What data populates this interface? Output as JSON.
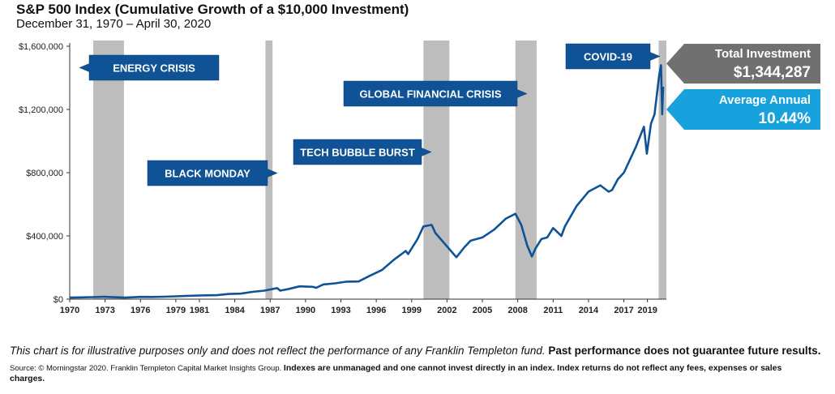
{
  "header": {
    "title": "S&P 500 Index (Cumulative Growth of a $10,000 Investment)",
    "subtitle": "December 31, 1970 – April 30, 2020"
  },
  "callouts": {
    "total_label": "Total Investment",
    "total_value": "$1,344,287",
    "average_label": "Average Annual",
    "average_value": "10.44%"
  },
  "footer": {
    "note": "This chart is for illustrative purposes only and does not reflect the performance of any Franklin Templeton fund.",
    "note_bold": "Past performance does not guarantee future results.",
    "source": "Source: © Morningstar 2020. Franklin Templeton Capital Market Insights Group.",
    "source_bold": "Indexes are unmanaged and one cannot invest directly in an index. Index returns do not reflect any fees, expenses or sales charges."
  },
  "colors": {
    "line": "#0f5396",
    "label_bg": "#0f5396",
    "shade": "#bdbdbd",
    "total_bg": "#707070",
    "average_bg": "#17a2de"
  },
  "chart_data": {
    "type": "line",
    "x_unit": "year",
    "xlim": [
      1970,
      2020.33
    ],
    "ylim": [
      0,
      1600000
    ],
    "yticks": [
      0,
      400000,
      800000,
      1200000,
      1600000
    ],
    "ytick_labels": [
      "$0",
      "$400,000",
      "$800,000",
      "$1,200,000",
      "$1,600,000"
    ],
    "xticks": [
      1970,
      1973,
      1976,
      1979,
      1981,
      1984,
      1987,
      1990,
      1993,
      1996,
      1999,
      2002,
      2005,
      2008,
      2011,
      2014,
      2017,
      2019
    ],
    "xtick_labels": [
      "1970",
      "1973",
      "1976",
      "1979",
      "1981",
      "1984",
      "1987",
      "1990",
      "1993",
      "1996",
      "1999",
      "2002",
      "2005",
      "2008",
      "2011",
      "2014",
      "2017",
      "2019"
    ],
    "series": [
      {
        "x": [
          1970.0,
          1971.0,
          1972.0,
          1972.9,
          1973.5,
          1974.7,
          1975.5,
          1976.0,
          1977.0,
          1978.0,
          1979.0,
          1980.0,
          1981.0,
          1982.5,
          1983.5,
          1984.5,
          1985.5,
          1986.5,
          1987.6,
          1987.85,
          1988.5,
          1989.5,
          1990.6,
          1990.9,
          1991.5,
          1992.5,
          1993.5,
          1994.5,
          1995.5,
          1996.5,
          1997.5,
          1998.5,
          1998.7,
          1999.5,
          2000.0,
          2000.7,
          2001.0,
          2001.7,
          2002.5,
          2002.8,
          2003.5,
          2004.0,
          2005.0,
          2006.0,
          2007.0,
          2007.8,
          2008.3,
          2008.8,
          2009.2,
          2009.5,
          2010.0,
          2010.5,
          2011.0,
          2011.7,
          2012.0,
          2013.0,
          2014.0,
          2015.0,
          2015.7,
          2016.0,
          2016.5,
          2017.0,
          2018.0,
          2018.7,
          2018.95,
          2019.3,
          2019.6,
          2020.0,
          2020.15,
          2020.25,
          2020.33
        ],
        "y": [
          10000,
          11500,
          13000,
          15500,
          13500,
          9500,
          12500,
          14500,
          14000,
          15500,
          18000,
          21000,
          23000,
          25000,
          33000,
          35000,
          46000,
          54000,
          70000,
          54000,
          63000,
          81000,
          78000,
          72000,
          93000,
          100000,
          111000,
          112000,
          150000,
          185000,
          250000,
          305000,
          285000,
          380000,
          460000,
          470000,
          420000,
          360000,
          290000,
          265000,
          330000,
          370000,
          390000,
          440000,
          510000,
          540000,
          470000,
          340000,
          270000,
          320000,
          380000,
          390000,
          450000,
          400000,
          460000,
          590000,
          680000,
          720000,
          680000,
          690000,
          760000,
          800000,
          960000,
          1090000,
          920000,
          1110000,
          1170000,
          1420000,
          1480000,
          1170000,
          1344287
        ]
      }
    ],
    "shaded_periods": [
      {
        "name": "ENERGY CRISIS",
        "start": 1972.0,
        "end": 1974.6
      },
      {
        "name": "BLACK MONDAY",
        "start": 1986.6,
        "end": 1987.2
      },
      {
        "name": "TECH BUBBLE BURST",
        "start": 2000.0,
        "end": 2002.2
      },
      {
        "name": "GLOBAL FINANCIAL CRISIS",
        "start": 2007.8,
        "end": 2009.6
      },
      {
        "name": "COVID-19",
        "start": 2019.95,
        "end": 2020.7
      }
    ]
  }
}
